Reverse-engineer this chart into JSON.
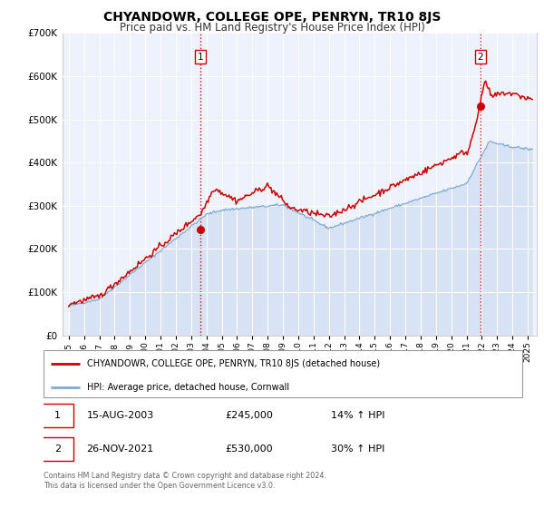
{
  "title": "CHYANDOWR, COLLEGE OPE, PENRYN, TR10 8JS",
  "subtitle": "Price paid vs. HM Land Registry's House Price Index (HPI)",
  "ylim": [
    0,
    700000
  ],
  "xlim_start": 1994.6,
  "xlim_end": 2025.6,
  "background_color": "#ffffff",
  "plot_bg_color": "#eef2fc",
  "grid_color": "#ffffff",
  "red_line_color": "#cc0000",
  "blue_line_color": "#7daad4",
  "blue_fill_color": "#c8d8f0",
  "marker1_x": 2003.62,
  "marker1_y": 245000,
  "marker2_x": 2021.9,
  "marker2_y": 530000,
  "vline1_x": 2003.62,
  "vline2_x": 2021.9,
  "legend_label_red": "CHYANDOWR, COLLEGE OPE, PENRYN, TR10 8JS (detached house)",
  "legend_label_blue": "HPI: Average price, detached house, Cornwall",
  "table_row1": [
    "1",
    "15-AUG-2003",
    "£245,000",
    "14% ↑ HPI"
  ],
  "table_row2": [
    "2",
    "26-NOV-2021",
    "£530,000",
    "30% ↑ HPI"
  ],
  "footer_line1": "Contains HM Land Registry data © Crown copyright and database right 2024.",
  "footer_line2": "This data is licensed under the Open Government Licence v3.0.",
  "title_fontsize": 10,
  "subtitle_fontsize": 8.5,
  "ytick_values": [
    0,
    100000,
    200000,
    300000,
    400000,
    500000,
    600000,
    700000
  ]
}
